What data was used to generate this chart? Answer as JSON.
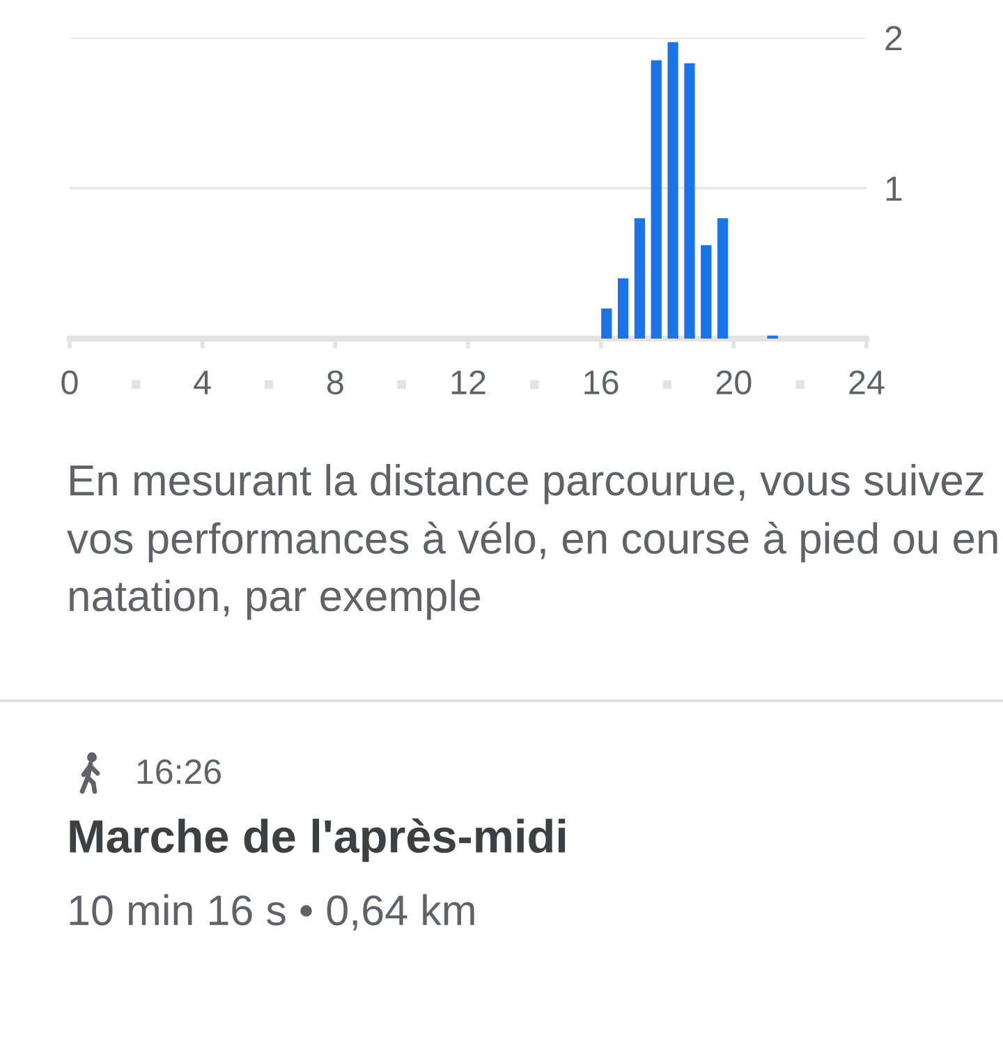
{
  "chart_data": {
    "type": "bar",
    "x": [
      16.17,
      16.67,
      17.17,
      17.67,
      18.17,
      18.67,
      19.17,
      19.67,
      21.17
    ],
    "values": [
      0.2,
      0.4,
      0.8,
      1.85,
      1.97,
      1.83,
      0.62,
      0.8,
      0.02
    ],
    "color": "#1a73e8",
    "xlim": [
      0,
      24
    ],
    "xticks": [
      0,
      4,
      8,
      12,
      16,
      20,
      24
    ],
    "ylim": [
      0,
      2
    ],
    "yticks": [
      1,
      2
    ],
    "grid": "y",
    "annotations": [
      "En mesurant la distance parcourue, vous suivez vos performances à vélo, en course à pied ou en natation, par exemple",
      "16:26",
      "Marche de l'après-midi",
      "10 min 16 s • 0,64 km"
    ]
  }
}
